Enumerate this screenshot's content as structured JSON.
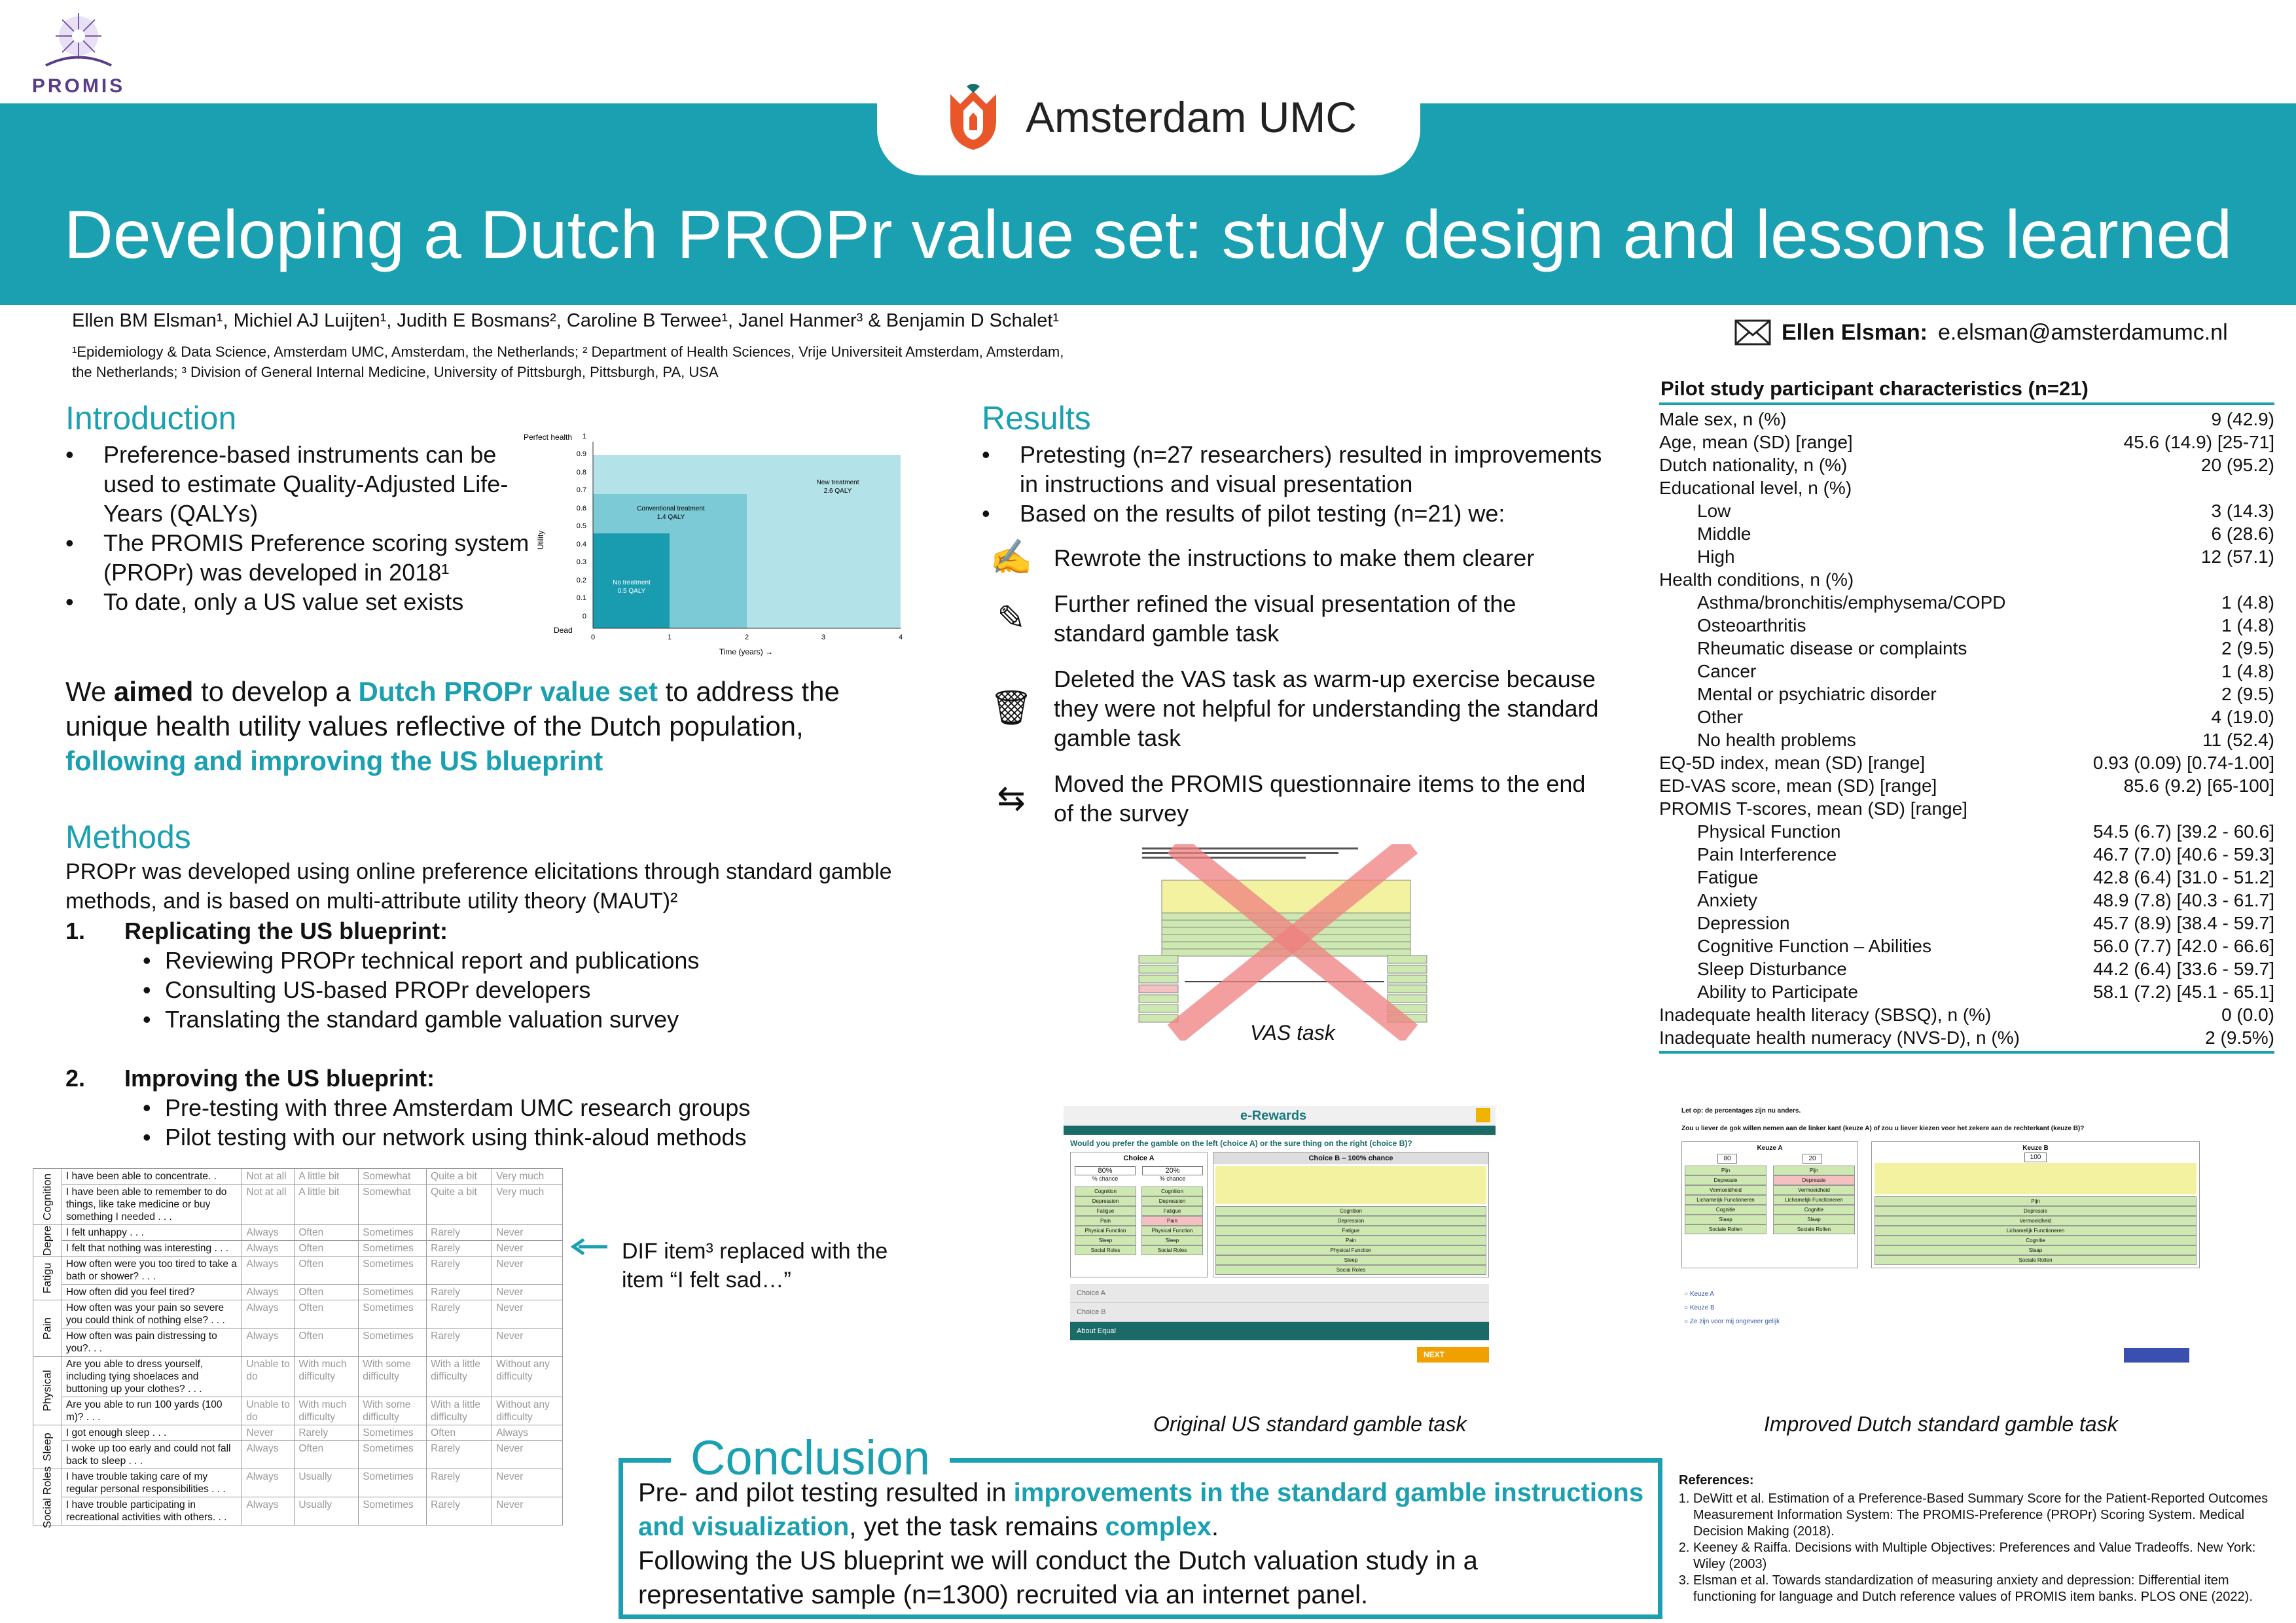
{
  "header": {
    "promis_logo": "PROMIS",
    "org_logo": "Amsterdam UMC",
    "title": "Developing a Dutch PROPr value set: study design and lessons learned"
  },
  "authors": {
    "line": "Ellen BM Elsman¹, Michiel AJ Luijten¹, Judith E Bosmans², Caroline B Terwee¹, Janel Hanmer³ & Benjamin D Schalet¹",
    "affil1": "¹Epidemiology & Data Science, Amsterdam UMC, Amsterdam, the Netherlands; ² Department of Health Sciences, Vrije Universiteit Amsterdam, Amsterdam,",
    "affil2": "the Netherlands; ³ Division of General Internal Medicine, University of Pittsburgh, Pittsburgh, PA, USA"
  },
  "contact": {
    "name": "Ellen Elsman:",
    "email": "e.elsman@amsterdamumc.nl"
  },
  "introduction": {
    "heading": "Introduction",
    "bullets": [
      "Preference-based instruments can be used to estimate Quality-Adjusted Life-Years (QALYs)",
      "The PROMIS Preference scoring system (PROPr) was developed in 2018¹",
      "To date, only a US value set exists"
    ]
  },
  "qaly_chart": {
    "ytop": "Perfect health",
    "ybot": "Dead",
    "ylabel": "Utility",
    "xlabel": "Time (years) →",
    "yticks": [
      "1",
      "0.9",
      "0.8",
      "0.7",
      "0.6",
      "0.5",
      "0.4",
      "0.3",
      "0.2",
      "0.1",
      "0"
    ],
    "xticks": [
      "0",
      "1",
      "2",
      "3",
      "4"
    ],
    "areas": [
      {
        "label": "New treatment",
        "sub": "2.6 QALY"
      },
      {
        "label": "Conventional treatment",
        "sub": "1.4 QALY"
      },
      {
        "label": "No treatment",
        "sub": "0.5 QALY"
      }
    ]
  },
  "aim": {
    "p1": "We ",
    "p2": "aimed",
    "p3": " to develop a ",
    "p4": "Dutch PROPr value set",
    "p5": " to address the unique health utility values reflective of the Dutch population, ",
    "p6": "following and improving the US blueprint"
  },
  "methods": {
    "heading": "Methods",
    "text": "PROPr was developed using online preference elicitations through standard gamble methods, and is based on multi-attribute utility theory (MAUT)²",
    "step1": {
      "num": "1.",
      "title": "Replicating the US blueprint:",
      "items": [
        "Reviewing PROPr technical report and publications",
        "Consulting US-based PROPr developers",
        "Translating the standard gamble valuation survey"
      ]
    },
    "step2": {
      "num": "2.",
      "title": "Improving the US blueprint:",
      "items": [
        "Pre-testing with three Amsterdam UMC research groups",
        "Pilot testing with our network using think-aloud methods"
      ]
    }
  },
  "items_table": {
    "rows": [
      {
        "domain": "Cognition",
        "q": "I have been able to concentrate. .",
        "r": [
          "Not at all",
          "A little bit",
          "Somewhat",
          "Quite a bit",
          "Very much"
        ]
      },
      {
        "domain": "",
        "q": "I have been able to remember to do things, like take medicine or buy something I needed . . .",
        "r": [
          "Not at all",
          "A little bit",
          "Somewhat",
          "Quite a bit",
          "Very much"
        ]
      },
      {
        "domain": "Depre",
        "q": "I felt unhappy . . .",
        "r": [
          "Always",
          "Often",
          "Sometimes",
          "Rarely",
          "Never"
        ]
      },
      {
        "domain": "",
        "q": "I felt that nothing was interesting . . .",
        "r": [
          "Always",
          "Often",
          "Sometimes",
          "Rarely",
          "Never"
        ]
      },
      {
        "domain": "Fatigu",
        "q": "How often were you too tired to take a bath or shower? . . .",
        "r": [
          "Always",
          "Often",
          "Sometimes",
          "Rarely",
          "Never"
        ]
      },
      {
        "domain": "",
        "q": "How often did you feel tired?",
        "r": [
          "Always",
          "Often",
          "Sometimes",
          "Rarely",
          "Never"
        ]
      },
      {
        "domain": "Pain",
        "q": "How often was your pain so severe you could think of nothing else? . . .",
        "r": [
          "Always",
          "Often",
          "Sometimes",
          "Rarely",
          "Never"
        ]
      },
      {
        "domain": "",
        "q": "How often was pain distressing to you?. . .",
        "r": [
          "Always",
          "Often",
          "Sometimes",
          "Rarely",
          "Never"
        ]
      },
      {
        "domain": "Physical",
        "q": "Are you able to dress yourself, including tying shoelaces and buttoning up your clothes? . . .",
        "r": [
          "Unable to do",
          "With much difficulty",
          "With some difficulty",
          "With a little difficulty",
          "Without any difficulty"
        ]
      },
      {
        "domain": "",
        "q": "Are you able to run 100 yards (100 m)? . . .",
        "r": [
          "Unable to do",
          "With much difficulty",
          "With some difficulty",
          "With a little difficulty",
          "Without any difficulty"
        ]
      },
      {
        "domain": "Sleep",
        "q": "I got enough sleep . . .",
        "r": [
          "Never",
          "Rarely",
          "Sometimes",
          "Often",
          "Always"
        ]
      },
      {
        "domain": "",
        "q": "I woke up too early and could not fall back to sleep . . .",
        "r": [
          "Always",
          "Often",
          "Sometimes",
          "Rarely",
          "Never"
        ]
      },
      {
        "domain": "Social Roles",
        "q": "I have trouble taking care of my regular personal responsibilities . . .",
        "r": [
          "Always",
          "Usually",
          "Sometimes",
          "Rarely",
          "Never"
        ]
      },
      {
        "domain": "",
        "q": "I have trouble participating in recreational activities with others. . .",
        "r": [
          "Always",
          "Usually",
          "Sometimes",
          "Rarely",
          "Never"
        ]
      }
    ]
  },
  "dif_note": "DIF item³ replaced with the item “I felt sad…”",
  "results": {
    "heading": "Results",
    "bullets": [
      "Pretesting (n=27 researchers) resulted in improvements in instructions and visual presentation",
      "Based on the results of pilot testing (n=21) we:"
    ],
    "actions": [
      {
        "icon": "✍",
        "text": "Rewrote the instructions to make them clearer"
      },
      {
        "icon": "✎",
        "text": "Further refined the visual presentation of the standard gamble task"
      },
      {
        "icon": "🗑",
        "text": "Deleted the VAS task as warm-up exercise because they were not helpful for understanding the standard gamble task"
      },
      {
        "icon": "⇆",
        "text": "Moved the PROMIS questionnaire items to the end of the survey"
      }
    ]
  },
  "vas_caption": "VAS task",
  "us_caption": "Original US standard gamble task",
  "nl_caption": "Improved Dutch standard gamble task",
  "us_task": {
    "brand": "e-Rewards",
    "question": "Would you prefer the gamble on the left (choice A) or the sure thing on the right (choice B)?",
    "choiceA": "Choice A",
    "choiceB": "Choice B – 100% chance",
    "pA": "80%",
    "pB": "20%",
    "chance": "% chance",
    "domains": [
      "Cognition",
      "Depression",
      "Fatigue",
      "Pain",
      "Physical Function",
      "Sleep",
      "Social Roles"
    ],
    "opt1": "Choice A",
    "opt2": "Choice B",
    "about": "About Equal",
    "next": "NEXT"
  },
  "nl_task": {
    "l1": "Let op: de percentages zijn nu anders.",
    "l2": "Zou u liever de gok willen nemen aan de linker kant (keuze A) of zou u liever kiezen voor het zekere aan de rechterkant (keuze B)?",
    "keuzeA": "Keuze A",
    "keuzeB": "Keuze B",
    "p1": "80",
    "p2": "20",
    "p3": "100",
    "domains": [
      "Pijn",
      "Depressie",
      "Vermoeidheid",
      "Lichamelijk Functioneren",
      "Cognitie",
      "Slaap",
      "Sociale Rollen"
    ],
    "opts": [
      "Keuze A",
      "Keuze B",
      "Ze zijn voor mij ongeveer gelijk"
    ]
  },
  "participants": {
    "title": "Pilot study participant characteristics (n=21)",
    "rows": [
      {
        "l": "Male sex, n (%)",
        "v": "9 (42.9)",
        "i": 0
      },
      {
        "l": "Age, mean (SD) [range]",
        "v": "45.6 (14.9) [25-71]",
        "i": 0
      },
      {
        "l": "Dutch nationality, n (%)",
        "v": "20 (95.2)",
        "i": 0
      },
      {
        "l": "Educational level, n (%)",
        "v": "",
        "i": 0
      },
      {
        "l": "Low",
        "v": "3 (14.3)",
        "i": 1
      },
      {
        "l": "Middle",
        "v": "6 (28.6)",
        "i": 1
      },
      {
        "l": "High",
        "v": "12 (57.1)",
        "i": 1
      },
      {
        "l": "Health conditions, n (%)",
        "v": "",
        "i": 0
      },
      {
        "l": "Asthma/bronchitis/emphysema/COPD",
        "v": "1 (4.8)",
        "i": 1
      },
      {
        "l": "Osteoarthritis",
        "v": "1 (4.8)",
        "i": 1
      },
      {
        "l": "Rheumatic disease or complaints",
        "v": "2 (9.5)",
        "i": 1
      },
      {
        "l": "Cancer",
        "v": "1 (4.8)",
        "i": 1
      },
      {
        "l": "Mental or psychiatric disorder",
        "v": "2 (9.5)",
        "i": 1
      },
      {
        "l": "Other",
        "v": "4 (19.0)",
        "i": 1
      },
      {
        "l": "No health problems",
        "v": "11 (52.4)",
        "i": 1
      },
      {
        "l": "EQ-5D index, mean (SD) [range]",
        "v": "0.93 (0.09) [0.74-1.00]",
        "i": 0
      },
      {
        "l": "ED-VAS score, mean (SD) [range]",
        "v": "85.6 (9.2) [65-100]",
        "i": 0
      },
      {
        "l": "PROMIS T-scores, mean (SD) [range]",
        "v": "",
        "i": 0
      },
      {
        "l": "Physical Function",
        "v": "54.5 (6.7) [39.2 - 60.6]",
        "i": 1
      },
      {
        "l": "Pain Interference",
        "v": "46.7 (7.0) [40.6 - 59.3]",
        "i": 1
      },
      {
        "l": "Fatigue",
        "v": "42.8 (6.4) [31.0 - 51.2]",
        "i": 1
      },
      {
        "l": "Anxiety",
        "v": "48.9 (7.8) [40.3 - 61.7]",
        "i": 1
      },
      {
        "l": "Depression",
        "v": "45.7 (8.9) [38.4 - 59.7]",
        "i": 1
      },
      {
        "l": "Cognitive Function – Abilities",
        "v": "56.0 (7.7) [42.0 - 66.6]",
        "i": 1
      },
      {
        "l": "Sleep Disturbance",
        "v": "44.2 (6.4) [33.6 - 59.7]",
        "i": 1
      },
      {
        "l": "Ability to Participate",
        "v": "58.1 (7.2) [45.1 - 65.1]",
        "i": 1
      },
      {
        "l": "Inadequate health literacy (SBSQ), n (%)",
        "v": "0 (0.0)",
        "i": 0
      },
      {
        "l": "Inadequate health numeracy (NVS-D), n (%)",
        "v": "2 (9.5%)",
        "i": 0
      }
    ]
  },
  "conclusion": {
    "heading": "Conclusion",
    "a": "Pre- and pilot testing resulted in ",
    "b": "improvements in the standard gamble instructions and visualization",
    "c": ", yet the task remains ",
    "d": "complex",
    "e": ".",
    "f": "Following the US blueprint we will conduct the Dutch valuation study in a representative sample (n=1300) recruited via an internet panel."
  },
  "references": {
    "title": "References:",
    "items": [
      "DeWitt et al. Estimation of a Preference-Based Summary Score for the Patient-Reported Outcomes Measurement Information System: The PROMIS-Preference (PROPr) Scoring System. Medical Decision Making (2018).",
      "Keeney & Raiffa. Decisions with Multiple Objectives: Preferences and Value Tradeoffs. New York: Wiley (2003)",
      "Elsman et al. Towards standardization of measuring anxiety and depression: Differential item functioning for language and Dutch reference values of PROMIS item banks. PLOS ONE (2022)."
    ]
  },
  "colors": {
    "accent": "#1aa0b0",
    "logo_orange": "#e8562a"
  }
}
